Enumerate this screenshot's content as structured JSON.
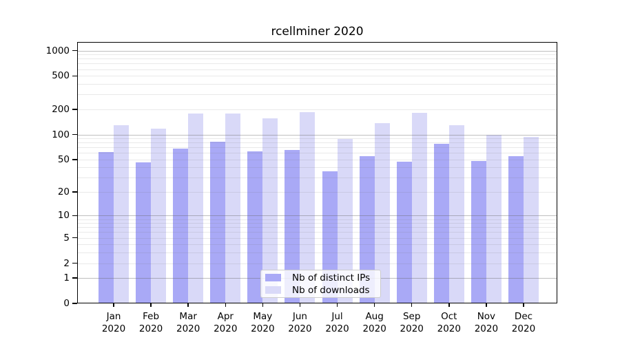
{
  "chart_data": {
    "type": "bar",
    "title": "rcellminer 2020",
    "categories": [
      "Jan",
      "Feb",
      "Mar",
      "Apr",
      "May",
      "Jun",
      "Jul",
      "Aug",
      "Sep",
      "Oct",
      "Nov",
      "Dec"
    ],
    "category_year": "2020",
    "series": [
      {
        "name": "Nb of distinct IPs",
        "color": "#a9a9f6",
        "values": [
          62,
          46,
          68,
          82,
          63,
          65,
          36,
          55,
          47,
          77,
          48,
          55
        ]
      },
      {
        "name": "Nb of downloads",
        "color": "#d9d9f8",
        "values": [
          129,
          117,
          178,
          179,
          155,
          186,
          89,
          137,
          180,
          129,
          100,
          94
        ]
      }
    ],
    "y_ticks": [
      0,
      1,
      2,
      5,
      10,
      20,
      50,
      100,
      200,
      500,
      1000
    ],
    "y_scale": "log1p",
    "ylim": [
      0,
      1000
    ],
    "grid": "horizontal major+minor, drawn over bars",
    "legend_position": "inside bottom-center",
    "background_color": "#ffffff",
    "text_color": "#000000"
  }
}
